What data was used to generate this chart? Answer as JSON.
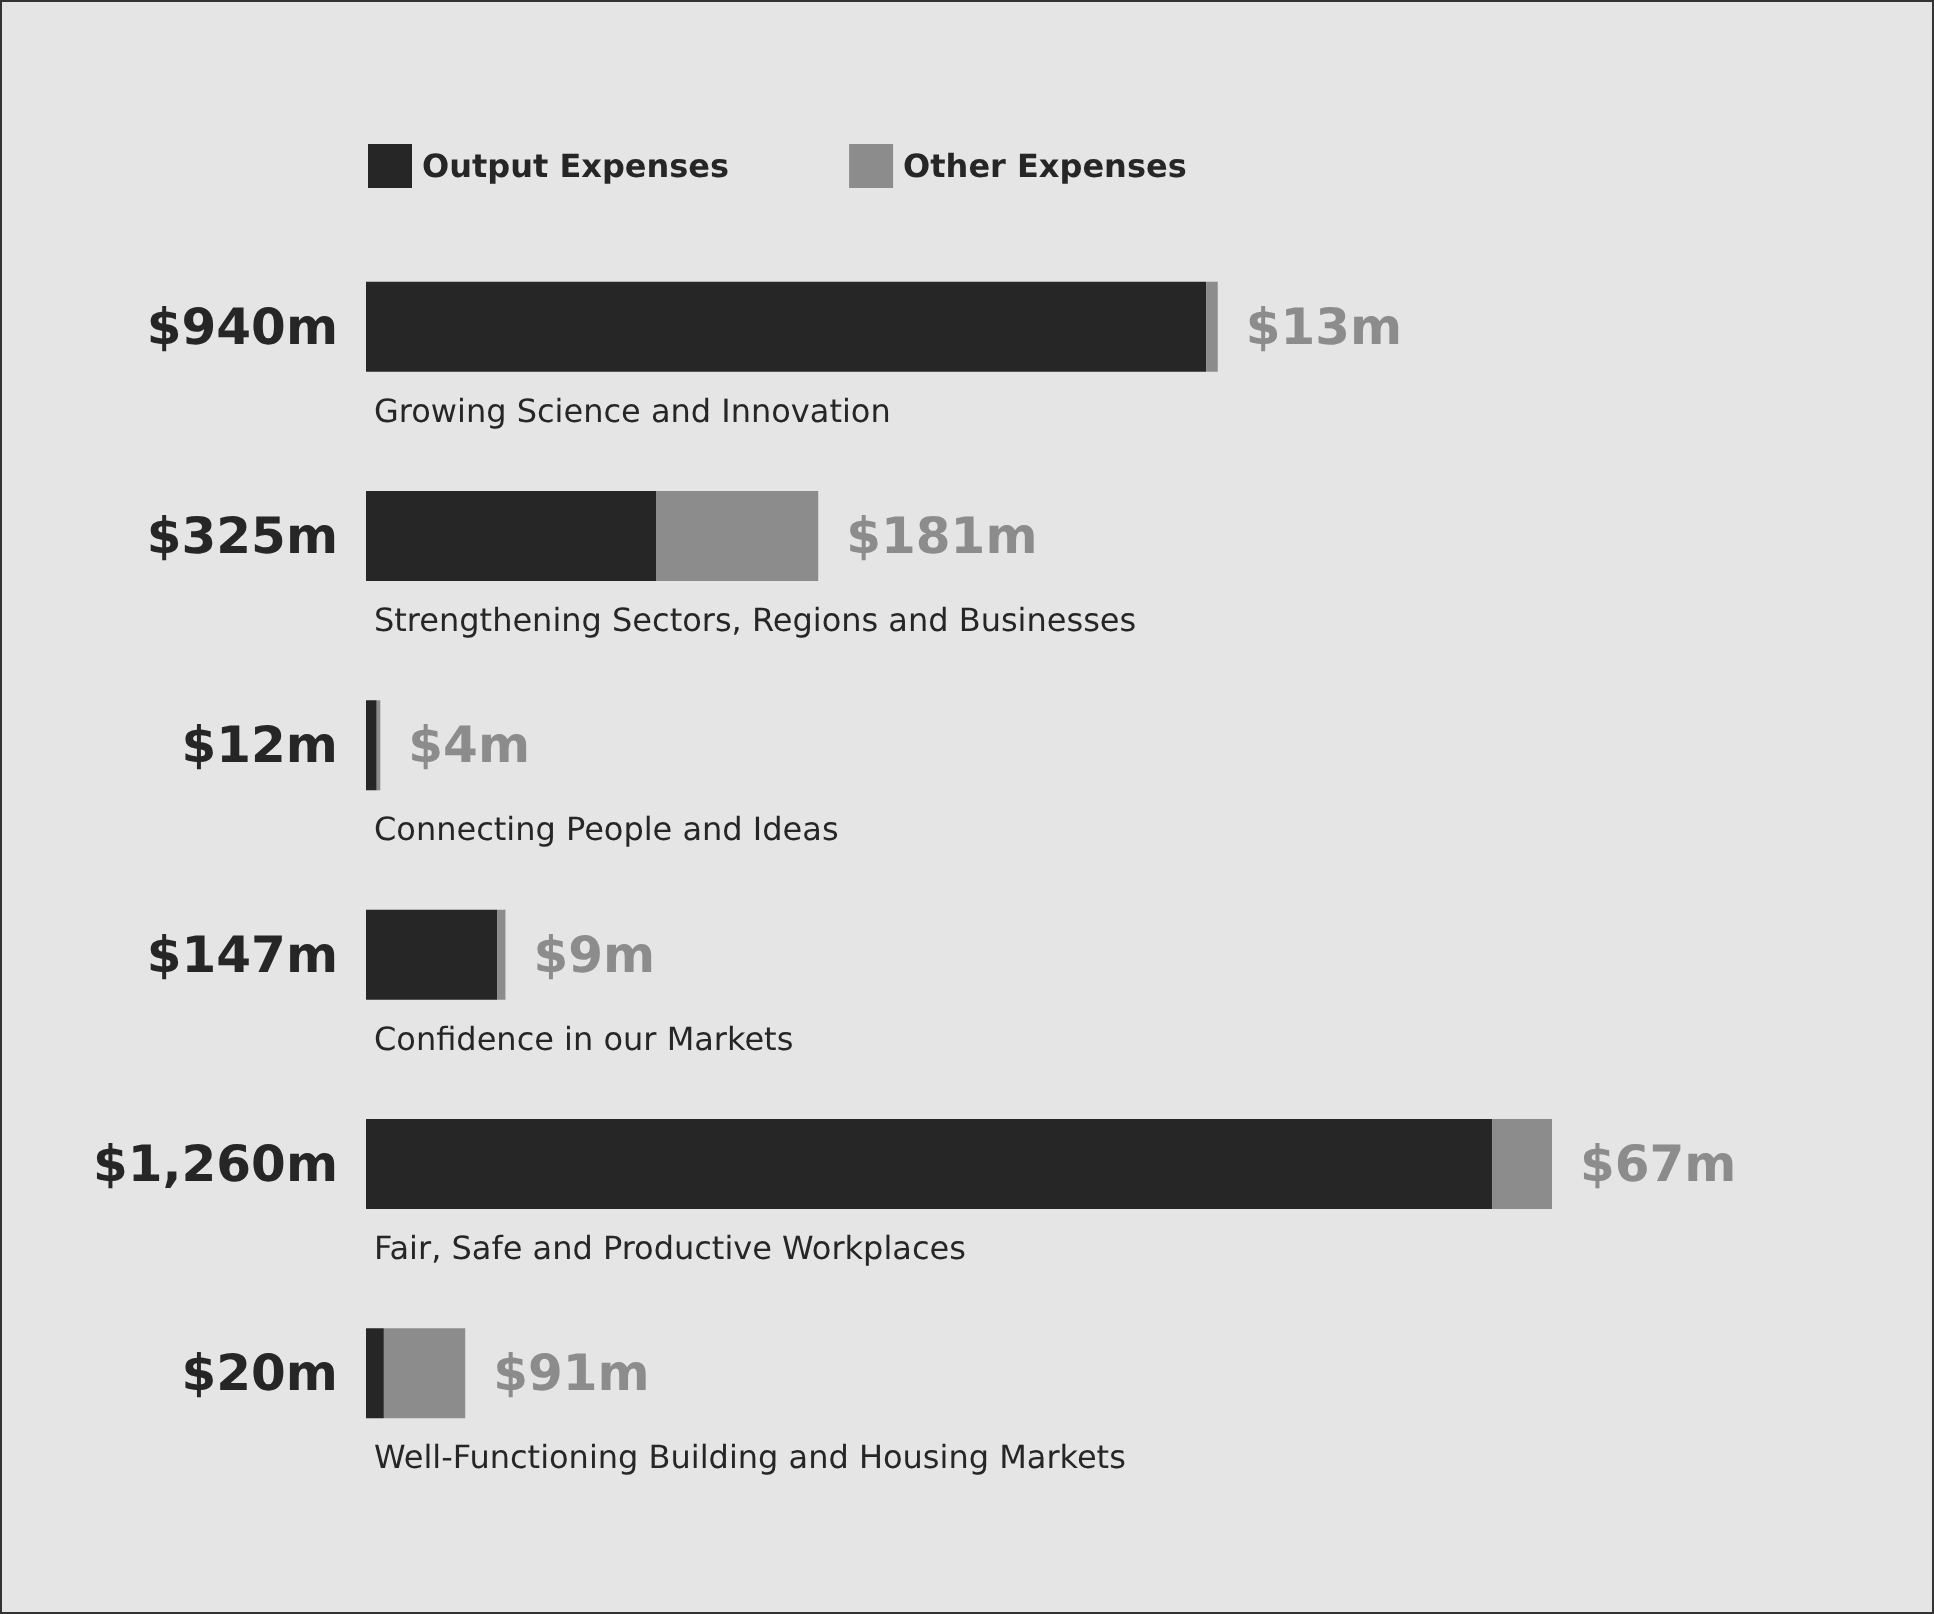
{
  "chart_data": {
    "type": "bar",
    "orientation": "horizontal",
    "stacked": true,
    "legend": "top left",
    "grid": false,
    "categories": [
      "Growing Science and Innovation",
      "Strengthening Sectors, Regions and Businesses",
      "Connecting People and Ideas",
      "Confidence in our Markets",
      "Fair, Safe and Productive Workplaces",
      "Well-Functioning Building and Housing Markets"
    ],
    "series": [
      {
        "name": "Output Expenses",
        "color": "#262626",
        "values": [
          940,
          325,
          12,
          147,
          1260,
          20
        ],
        "value_labels": [
          "$940m",
          "$325m",
          "$12m",
          "$147m",
          "$1,260m",
          "$20m"
        ]
      },
      {
        "name": "Other Expenses",
        "color": "#8c8c8c",
        "values": [
          13,
          181,
          4,
          9,
          67,
          91
        ],
        "value_labels": [
          "$13m",
          "$181m",
          "$4m",
          "$9m",
          "$67m",
          "$91m"
        ]
      }
    ]
  }
}
